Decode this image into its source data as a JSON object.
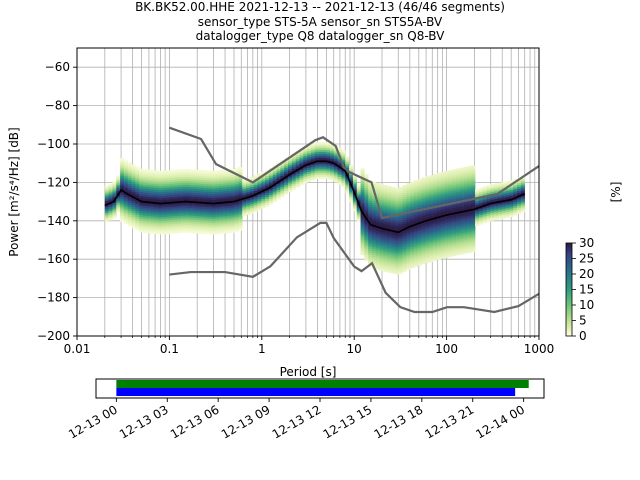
{
  "title_lines": [
    "BK.BK52.00.HHE   2021-12-13 -- 2021-12-13  (46/46 segments)",
    "sensor_type STS-5A sensor_sn STS5A-BV",
    "datalogger_type Q8 datalogger_sn Q8-BV"
  ],
  "chart_data": [
    {
      "type": "heatmap",
      "xlabel": "Period [s]",
      "ylabel": "Power [m²/s⁴/Hz] [dB]",
      "xscale": "log",
      "xlim": [
        0.01,
        1000
      ],
      "ylim": [
        -200,
        -50
      ],
      "x_tick_labels": [
        "0.01",
        "0.1",
        "1",
        "10",
        "100",
        "1000"
      ],
      "y_ticks": [
        -200,
        -180,
        -160,
        -140,
        -120,
        -100,
        -80,
        -60
      ],
      "y_tick_labels": [
        "−200",
        "−180",
        "−160",
        "−140",
        "−120",
        "−100",
        "−80",
        "−60"
      ],
      "grid": true,
      "colorbar": {
        "label": "[%]",
        "ticks": [
          0,
          5,
          10,
          15,
          20,
          25,
          30
        ],
        "range": [
          0,
          30
        ]
      },
      "mode_curve": {
        "name": "mode",
        "x": [
          0.02,
          0.025,
          0.03,
          0.035,
          0.05,
          0.08,
          0.15,
          0.3,
          0.5,
          0.8,
          1.2,
          2,
          3,
          4,
          5,
          6,
          8,
          10,
          12,
          15,
          20,
          30,
          40,
          60,
          100,
          200,
          300,
          500,
          700
        ],
        "y": [
          -132,
          -130,
          -124,
          -126,
          -130,
          -131,
          -130,
          -131,
          -130,
          -127,
          -123,
          -116,
          -111,
          -109,
          -109,
          -110,
          -114,
          -125,
          -135,
          -142,
          -144,
          -146,
          -143,
          -140,
          -137,
          -134,
          -131,
          -129,
          -126
        ]
      },
      "noise_models": [
        {
          "name": "NHNM",
          "x": [
            0.1,
            0.22,
            0.32,
            0.8,
            3.8,
            4.6,
            6.3,
            7.9,
            15.4,
            20,
            354.8,
            1000
          ],
          "y": [
            -91.5,
            -97.4,
            -110.5,
            -120,
            -98,
            -96.5,
            -101,
            -113.5,
            -120,
            -138.5,
            -126,
            -111.5
          ]
        },
        {
          "name": "NLNM",
          "x": [
            0.1,
            0.17,
            0.4,
            0.8,
            1.24,
            2.4,
            4.3,
            5,
            6,
            10,
            12,
            15.6,
            21.9,
            31.6,
            45,
            70,
            101,
            154,
            328,
            600,
            1000
          ],
          "y": [
            -168,
            -166.7,
            -166.7,
            -169.2,
            -163.7,
            -148.6,
            -141.1,
            -141.1,
            -149,
            -163.8,
            -166.2,
            -162.1,
            -177.5,
            -185,
            -187.5,
            -187.5,
            -185,
            -185,
            -187.5,
            -184.4,
            -178
          ]
        }
      ]
    },
    {
      "type": "timeline",
      "x_tick_labels": [
        "12-13 00",
        "12-13 03",
        "12-13 06",
        "12-13 09",
        "12-13 12",
        "12-13 15",
        "12-13 18",
        "12-13 21",
        "12-14 00"
      ],
      "bars": [
        {
          "color": "#008000",
          "start_hour": 0.0,
          "end_hour": 24.3
        },
        {
          "color": "#0000ff",
          "start_hour": 0.0,
          "end_hour": 23.5
        }
      ],
      "xlim_hours": [
        -1.2,
        25.2
      ]
    }
  ]
}
